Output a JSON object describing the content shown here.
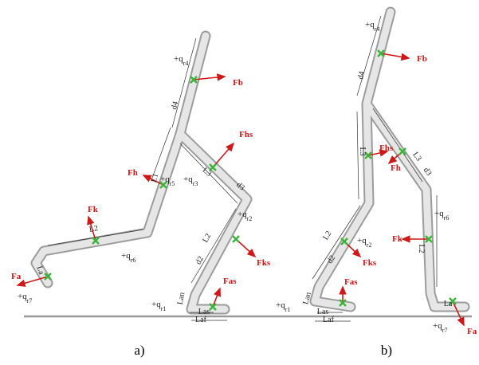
{
  "panels": [
    {
      "caption": "a)",
      "forces": [
        "Fb",
        "Fhs",
        "Fh",
        "Fk",
        "Fks",
        "Fas",
        "Fa"
      ],
      "segments": [
        "d4",
        "L1",
        "L3",
        "d3",
        "L2",
        "L2",
        "d2",
        "La",
        "Lan",
        "Las",
        "Laf"
      ],
      "angles": [
        {
          "base": "+q",
          "sub": "r4"
        },
        {
          "base": "+q",
          "sub": "r5"
        },
        {
          "base": "+q",
          "sub": "r3"
        },
        {
          "base": "+q",
          "sub": "r2"
        },
        {
          "base": "+q",
          "sub": "r6"
        },
        {
          "base": "+q",
          "sub": "r7"
        },
        {
          "base": "+q",
          "sub": "r1"
        }
      ]
    },
    {
      "caption": "b)",
      "forces": [
        "Fb",
        "Fhs",
        "Fh",
        "Fk",
        "Fks",
        "Fas",
        "Fa"
      ],
      "segments": [
        "d4",
        "L3",
        "L3",
        "d3",
        "L2",
        "d2",
        "L2",
        "La",
        "Lan",
        "Las",
        "Laf"
      ],
      "angles": [
        {
          "base": "+q",
          "sub": "r4"
        },
        {
          "base": "+q",
          "sub": "r2"
        },
        {
          "base": "+q",
          "sub": "r6"
        },
        {
          "base": "+q",
          "sub": "r1"
        },
        {
          "base": "+q",
          "sub": "r7"
        }
      ]
    }
  ]
}
